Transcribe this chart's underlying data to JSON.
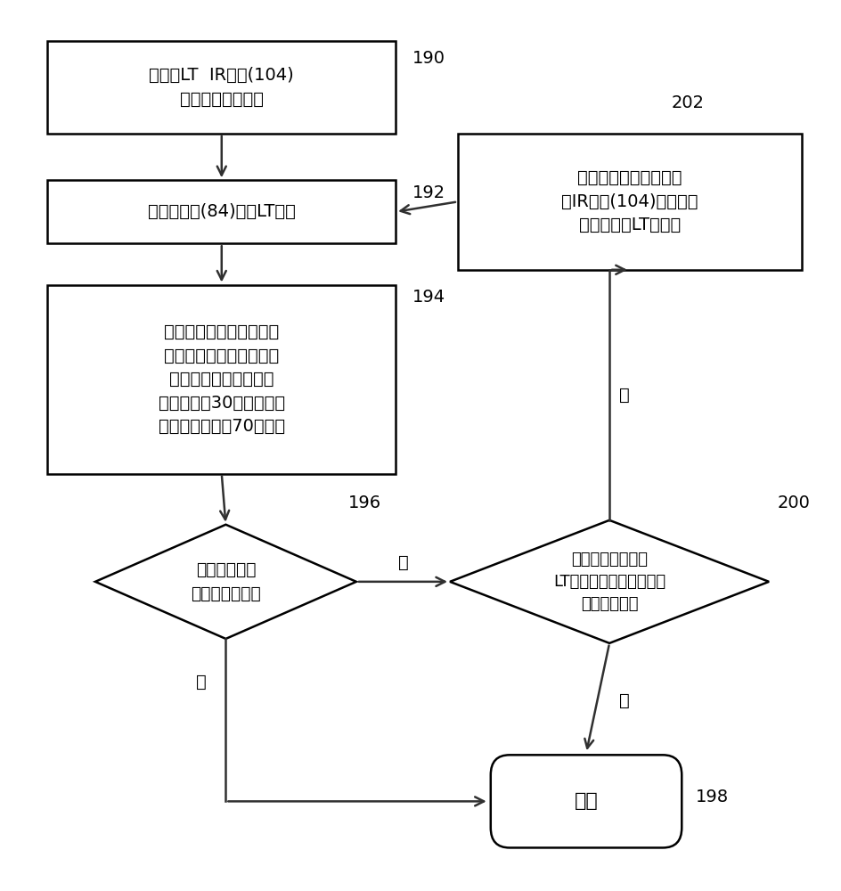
{
  "bg_color": "#ffffff",
  "box_color": "#ffffff",
  "box_edge_color": "#000000",
  "arrow_color": "#303030",
  "text_color": "#000000",
  "font_size": 14,
  "label_font_size": 14,
  "start_lines": [
    "将所有LT  IR光源(104)",
    "设置为标称种子值"
  ],
  "capture_lines": [
    "从成像装置(84)捕获LT图像"
  ],
  "process_lines": [
    "将图像分为三个段，并且",
    "计算每段中的平均亮度。",
    "利用直方图来丢弃低于",
    "最暗点的第30百分点以及",
    "高于最亮点的第70百分点"
  ],
  "diamond1_lines": [
    "平均亮度水平",
    "处于容差之内？"
  ],
  "diamond2_lines": [
    "达到迭代限定或者",
    "LT命令水平处于最低限度",
    "或最高限度？"
  ],
  "feedback_lines": [
    "基于所测量亮度来确定",
    "新IR光源(104)命令值，",
    "并且发送给LT控制器"
  ],
  "end_lines": [
    "完成"
  ],
  "label_190": "190",
  "label_192": "192",
  "label_194": "194",
  "label_196": "196",
  "label_198": "198",
  "label_200": "200",
  "label_202": "202",
  "no_text": "否",
  "yes_text": "是"
}
